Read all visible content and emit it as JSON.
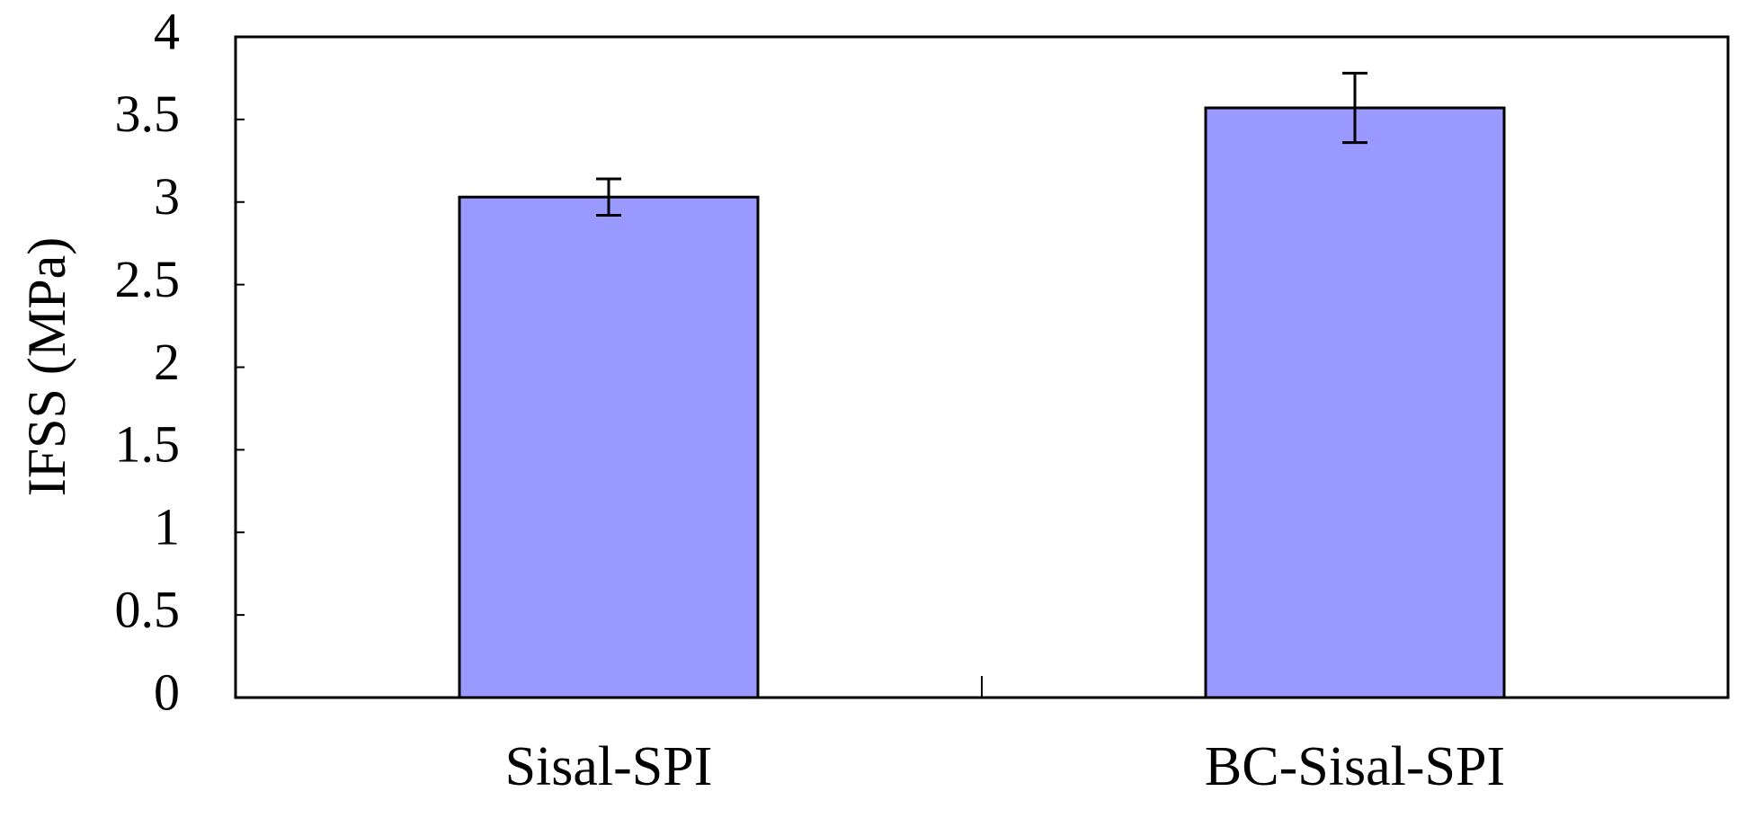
{
  "chart_data": {
    "type": "bar",
    "y_label": "IFSS (MPa)",
    "categories": [
      "Sisal-SPI",
      "BC-Sisal-SPI"
    ],
    "values": [
      3.03,
      3.57
    ],
    "errors": [
      0.11,
      0.21
    ],
    "color": "#9999ff",
    "ylim": [
      0,
      4
    ],
    "yticks": [
      0,
      0.5,
      1,
      1.5,
      2,
      2.5,
      3,
      3.5,
      4
    ],
    "grid": false
  }
}
